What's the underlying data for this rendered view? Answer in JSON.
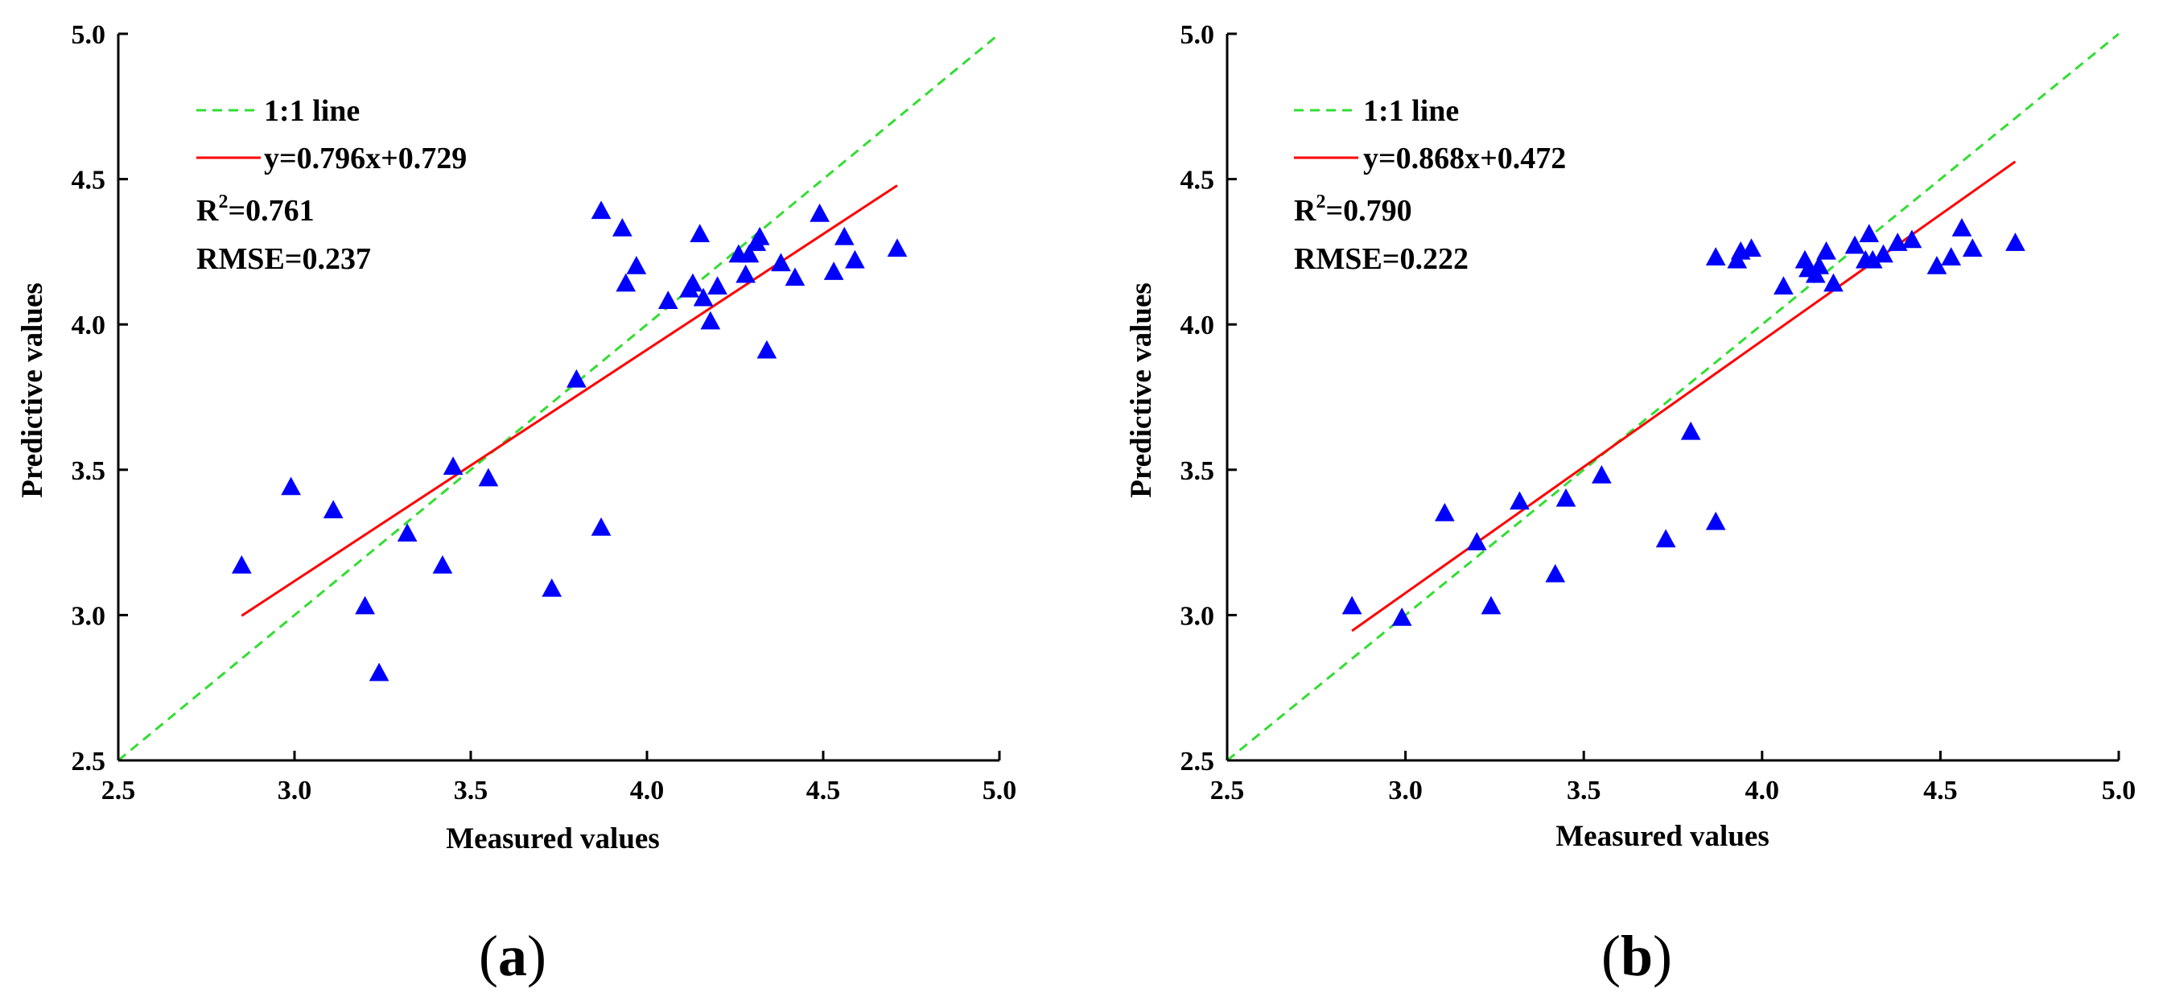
{
  "chart_data": [
    {
      "type": "scatter",
      "panel_label": "a",
      "xlabel": "Measured values",
      "ylabel": "Predictive values",
      "xlim": [
        2.5,
        5.0
      ],
      "ylim": [
        2.5,
        5.0
      ],
      "xticks": [
        "2.5",
        "3.0",
        "3.5",
        "4.0",
        "4.5",
        "5.0"
      ],
      "yticks": [
        "2.5",
        "3.0",
        "3.5",
        "4.0",
        "4.5",
        "5.0"
      ],
      "legend": {
        "position": "top-left",
        "identity_label": "1:1 line",
        "fit_label": "y=0.796x+0.729"
      },
      "stats": {
        "r2_prefix": "R",
        "r2_sup": "2",
        "r2_value": "=0.761",
        "rmse": "RMSE=0.237"
      },
      "fit": {
        "slope": 0.796,
        "intercept": 0.729,
        "x_range": [
          2.85,
          4.71
        ]
      },
      "colors": {
        "points": "#0000ff",
        "fit_line": "#ff0000",
        "identity_line": "#33dd33"
      },
      "points": [
        {
          "x": 2.85,
          "y": 3.17
        },
        {
          "x": 2.99,
          "y": 3.44
        },
        {
          "x": 3.11,
          "y": 3.36
        },
        {
          "x": 3.2,
          "y": 3.03
        },
        {
          "x": 3.24,
          "y": 2.8
        },
        {
          "x": 3.32,
          "y": 3.28
        },
        {
          "x": 3.42,
          "y": 3.17
        },
        {
          "x": 3.45,
          "y": 3.51
        },
        {
          "x": 3.55,
          "y": 3.47
        },
        {
          "x": 3.73,
          "y": 3.09
        },
        {
          "x": 3.8,
          "y": 3.81
        },
        {
          "x": 3.87,
          "y": 3.3
        },
        {
          "x": 3.87,
          "y": 4.39
        },
        {
          "x": 3.93,
          "y": 4.33
        },
        {
          "x": 3.94,
          "y": 4.14
        },
        {
          "x": 3.97,
          "y": 4.2
        },
        {
          "x": 4.06,
          "y": 4.08
        },
        {
          "x": 4.12,
          "y": 4.12
        },
        {
          "x": 4.13,
          "y": 4.14
        },
        {
          "x": 4.15,
          "y": 4.31
        },
        {
          "x": 4.16,
          "y": 4.09
        },
        {
          "x": 4.18,
          "y": 4.01
        },
        {
          "x": 4.2,
          "y": 4.13
        },
        {
          "x": 4.26,
          "y": 4.24
        },
        {
          "x": 4.28,
          "y": 4.17
        },
        {
          "x": 4.29,
          "y": 4.24
        },
        {
          "x": 4.31,
          "y": 4.28
        },
        {
          "x": 4.32,
          "y": 4.3
        },
        {
          "x": 4.34,
          "y": 3.91
        },
        {
          "x": 4.38,
          "y": 4.21
        },
        {
          "x": 4.42,
          "y": 4.16
        },
        {
          "x": 4.49,
          "y": 4.38
        },
        {
          "x": 4.53,
          "y": 4.18
        },
        {
          "x": 4.56,
          "y": 4.3
        },
        {
          "x": 4.59,
          "y": 4.22
        },
        {
          "x": 4.71,
          "y": 4.26
        }
      ]
    },
    {
      "type": "scatter",
      "panel_label": "b",
      "xlabel": "Measured values",
      "ylabel": "Predictive values",
      "xlim": [
        2.5,
        5.0
      ],
      "ylim": [
        2.5,
        5.0
      ],
      "xticks": [
        "2.5",
        "3.0",
        "3.5",
        "4.0",
        "4.5",
        "5.0"
      ],
      "yticks": [
        "2.5",
        "3.0",
        "3.5",
        "4.0",
        "4.5",
        "5.0"
      ],
      "legend": {
        "position": "top-left",
        "identity_label": "1:1 line",
        "fit_label": "y=0.868x+0.472"
      },
      "stats": {
        "r2_prefix": "R",
        "r2_sup": "2",
        "r2_value": "=0.790",
        "rmse": "RMSE=0.222"
      },
      "fit": {
        "slope": 0.868,
        "intercept": 0.472,
        "x_range": [
          2.85,
          4.71
        ]
      },
      "colors": {
        "points": "#0000ff",
        "fit_line": "#ff0000",
        "identity_line": "#33dd33"
      },
      "points": [
        {
          "x": 2.85,
          "y": 3.03
        },
        {
          "x": 2.99,
          "y": 2.99
        },
        {
          "x": 3.11,
          "y": 3.35
        },
        {
          "x": 3.2,
          "y": 3.25
        },
        {
          "x": 3.24,
          "y": 3.03
        },
        {
          "x": 3.32,
          "y": 3.39
        },
        {
          "x": 3.42,
          "y": 3.14
        },
        {
          "x": 3.45,
          "y": 3.4
        },
        {
          "x": 3.55,
          "y": 3.48
        },
        {
          "x": 3.73,
          "y": 3.26
        },
        {
          "x": 3.8,
          "y": 3.63
        },
        {
          "x": 3.87,
          "y": 3.32
        },
        {
          "x": 3.87,
          "y": 4.23
        },
        {
          "x": 3.93,
          "y": 4.22
        },
        {
          "x": 3.94,
          "y": 4.25
        },
        {
          "x": 3.97,
          "y": 4.26
        },
        {
          "x": 4.06,
          "y": 4.13
        },
        {
          "x": 4.12,
          "y": 4.22
        },
        {
          "x": 4.13,
          "y": 4.19
        },
        {
          "x": 4.15,
          "y": 4.17
        },
        {
          "x": 4.16,
          "y": 4.2
        },
        {
          "x": 4.18,
          "y": 4.25
        },
        {
          "x": 4.2,
          "y": 4.14
        },
        {
          "x": 4.26,
          "y": 4.27
        },
        {
          "x": 4.29,
          "y": 4.22
        },
        {
          "x": 4.3,
          "y": 4.31
        },
        {
          "x": 4.31,
          "y": 4.22
        },
        {
          "x": 4.34,
          "y": 4.24
        },
        {
          "x": 4.38,
          "y": 4.28
        },
        {
          "x": 4.42,
          "y": 4.29
        },
        {
          "x": 4.49,
          "y": 4.2
        },
        {
          "x": 4.53,
          "y": 4.23
        },
        {
          "x": 4.56,
          "y": 4.33
        },
        {
          "x": 4.59,
          "y": 4.26
        },
        {
          "x": 4.71,
          "y": 4.28
        }
      ]
    }
  ]
}
